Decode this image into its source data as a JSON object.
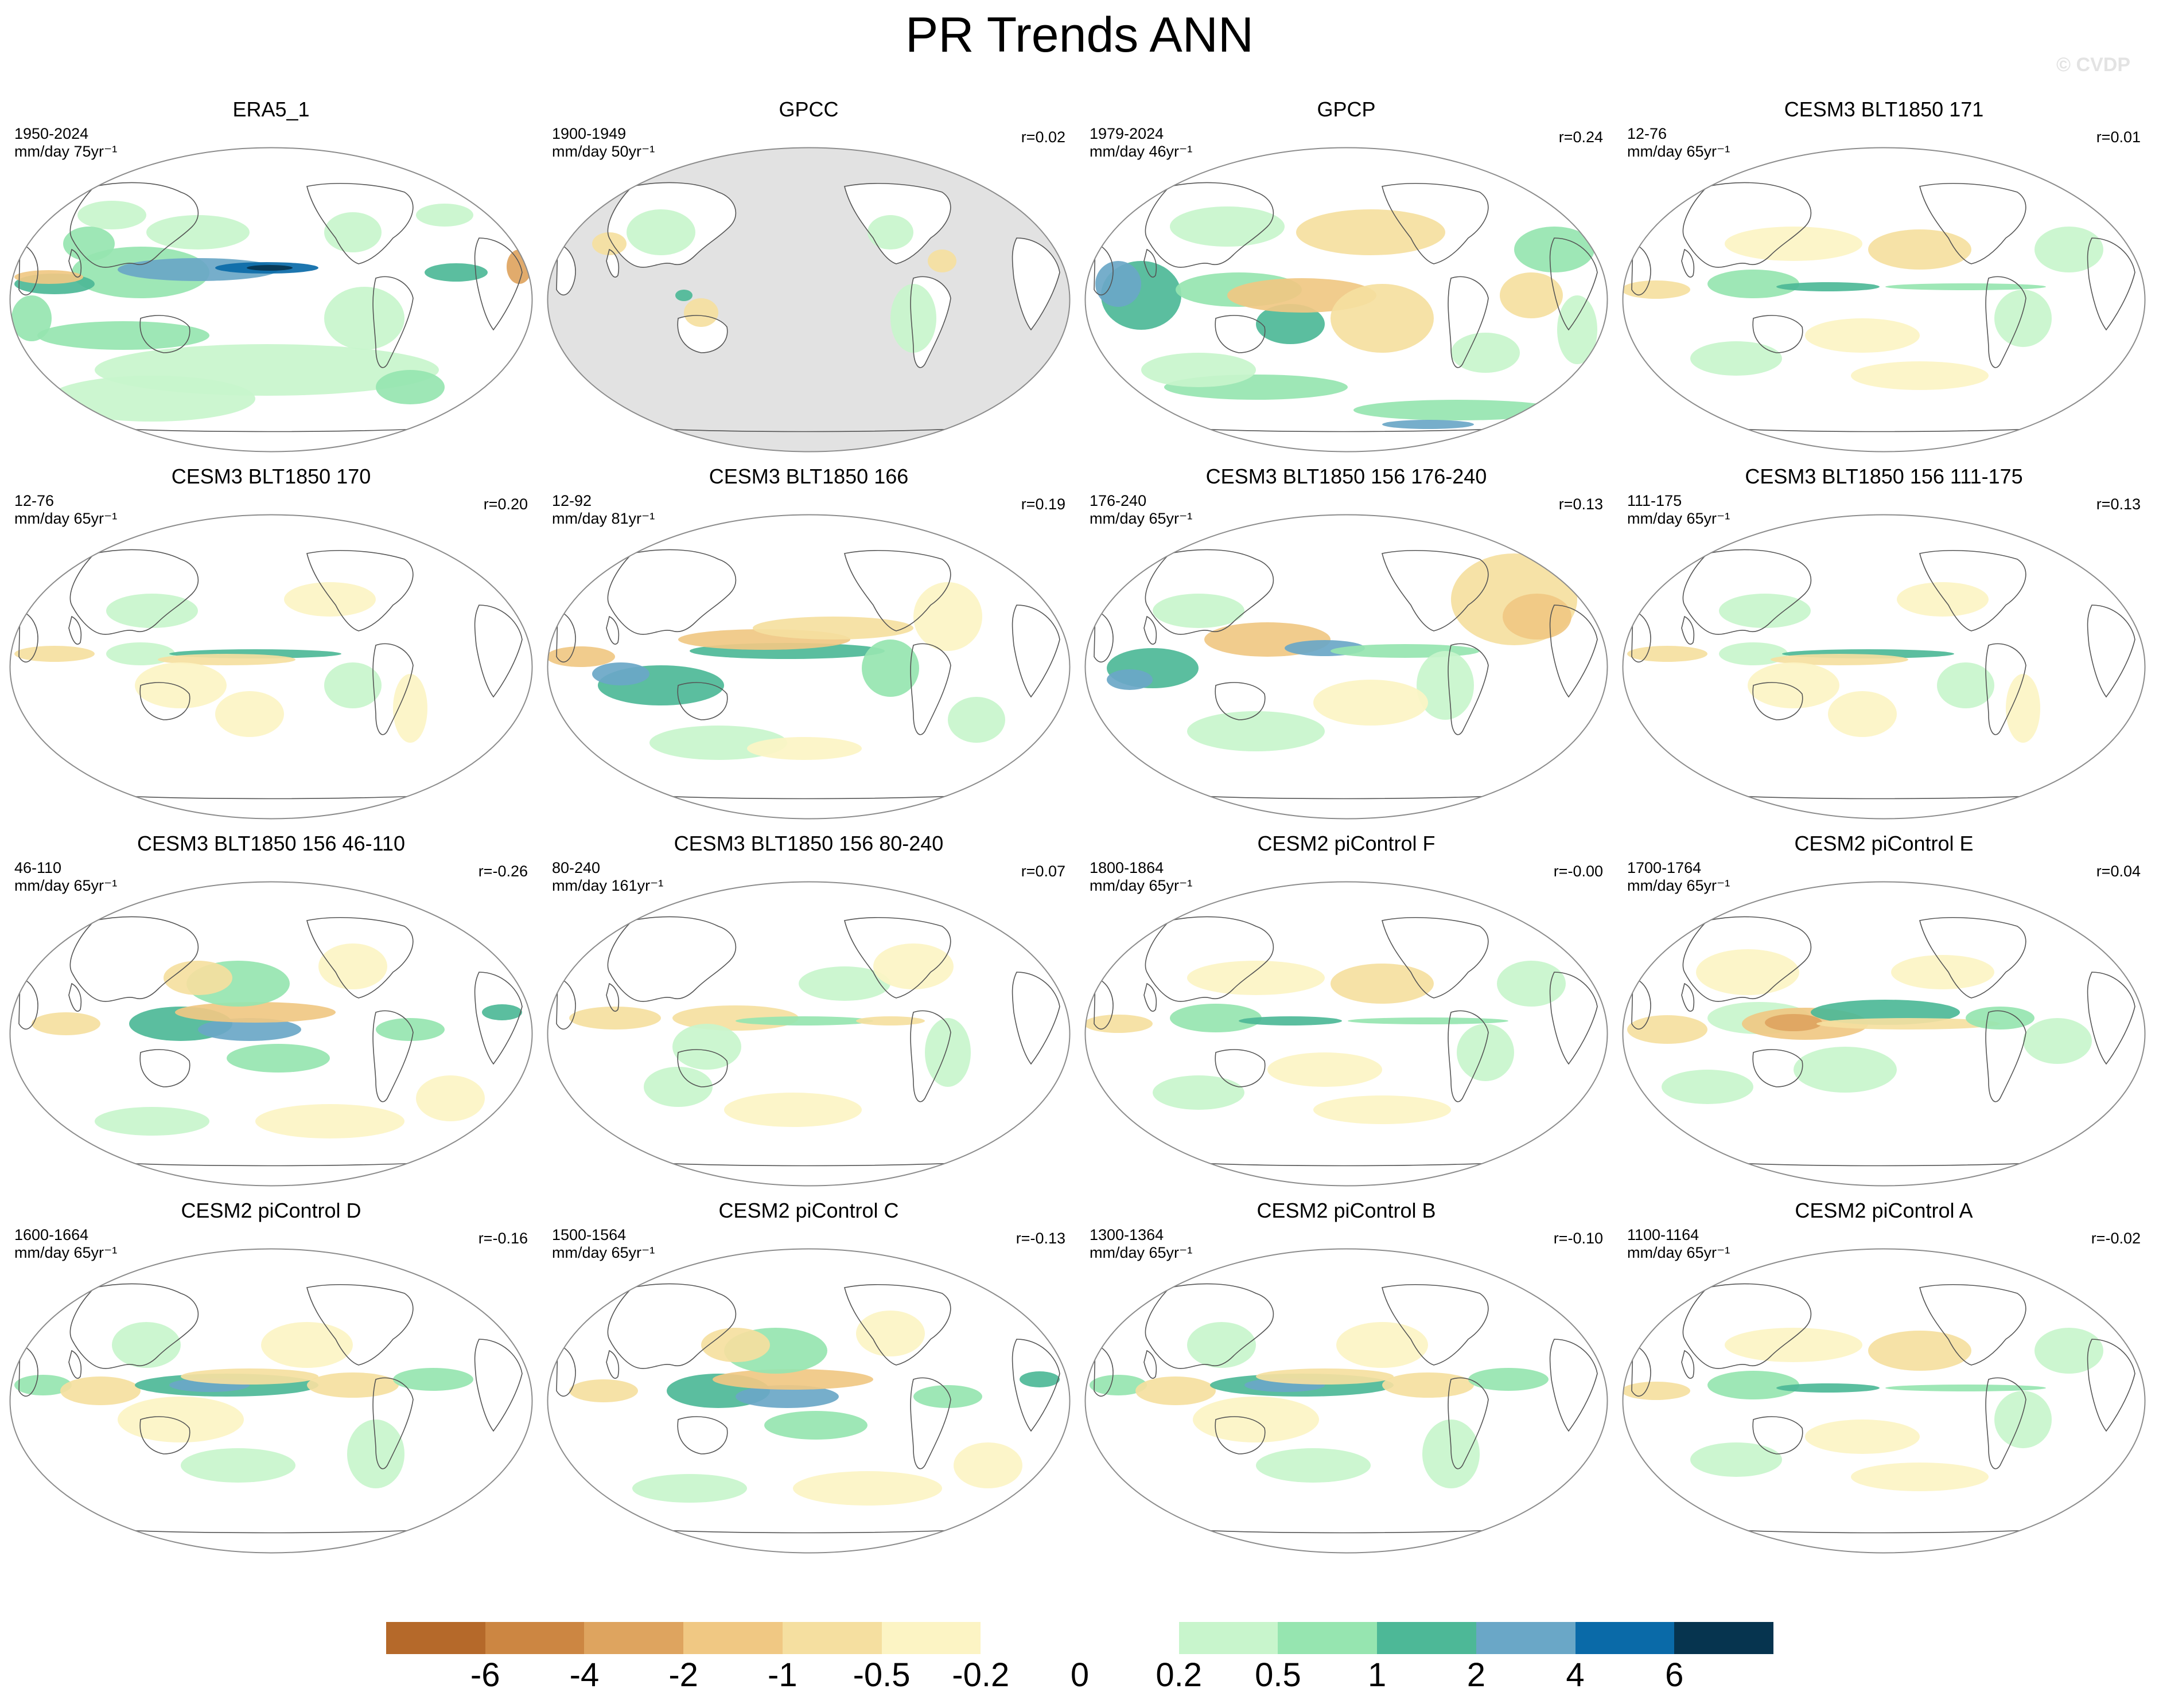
{
  "title": "PR Trends ANN",
  "watermark": "© CVDP",
  "panels": [
    {
      "title": "ERA5_1",
      "period": "1950-2024",
      "units": "mm/day 75yr⁻¹",
      "r": "",
      "masked_land_only": false,
      "pattern": "obs_era5"
    },
    {
      "title": "GPCC",
      "period": "1900-1949",
      "units": "mm/day 50yr⁻¹",
      "r": "r=0.02",
      "masked_land_only": true,
      "pattern": "gpcc"
    },
    {
      "title": "GPCP",
      "period": "1979-2024",
      "units": "mm/day 46yr⁻¹",
      "r": "r=0.24",
      "masked_land_only": false,
      "pattern": "gpcp"
    },
    {
      "title": "CESM3 BLT1850 171",
      "period": "12-76",
      "units": "mm/day 65yr⁻¹",
      "r": "r=0.01",
      "masked_land_only": false,
      "pattern": "weak_dipole"
    },
    {
      "title": "CESM3 BLT1850 170",
      "period": "12-76",
      "units": "mm/day 65yr⁻¹",
      "r": "r=0.20",
      "masked_land_only": false,
      "pattern": "narrow_band"
    },
    {
      "title": "CESM3 BLT1850 166",
      "period": "12-92",
      "units": "mm/day 81yr⁻¹",
      "r": "r=0.19",
      "masked_land_only": false,
      "pattern": "band_dry"
    },
    {
      "title": "CESM3 BLT1850 156 176-240",
      "period": "176-240",
      "units": "mm/day 65yr⁻¹",
      "r": "r=0.13",
      "masked_land_only": false,
      "pattern": "west_dry"
    },
    {
      "title": "CESM3 BLT1850 156 111-175",
      "period": "111-175",
      "units": "mm/day 65yr⁻¹",
      "r": "r=0.13",
      "masked_land_only": false,
      "pattern": "narrow_band"
    },
    {
      "title": "CESM3 BLT1850 156 46-110",
      "period": "46-110",
      "units": "mm/day 65yr⁻¹",
      "r": "r=-0.26",
      "masked_land_only": false,
      "pattern": "spcz_wet"
    },
    {
      "title": "CESM3 BLT1850 156 80-240",
      "period": "80-240",
      "units": "mm/day 161yr⁻¹",
      "r": "r=0.07",
      "masked_land_only": false,
      "pattern": "weak_band"
    },
    {
      "title": "CESM2 piControl F",
      "period": "1800-1864",
      "units": "mm/day 65yr⁻¹",
      "r": "r=-0.00",
      "masked_land_only": false,
      "pattern": "weak_dipole"
    },
    {
      "title": "CESM2 piControl E",
      "period": "1700-1764",
      "units": "mm/day 65yr⁻¹",
      "r": "r=0.04",
      "masked_land_only": false,
      "pattern": "dry_center"
    },
    {
      "title": "CESM2 piControl D",
      "period": "1600-1664",
      "units": "mm/day 65yr⁻¹",
      "r": "r=-0.16",
      "masked_land_only": false,
      "pattern": "band_wet"
    },
    {
      "title": "CESM2 piControl C",
      "period": "1500-1564",
      "units": "mm/day 65yr⁻¹",
      "r": "r=-0.13",
      "masked_land_only": false,
      "pattern": "spcz_wet"
    },
    {
      "title": "CESM2 piControl B",
      "period": "1300-1364",
      "units": "mm/day 65yr⁻¹",
      "r": "r=-0.10",
      "masked_land_only": false,
      "pattern": "band_wet"
    },
    {
      "title": "CESM2 piControl A",
      "period": "1100-1164",
      "units": "mm/day 65yr⁻¹",
      "r": "r=-0.02",
      "masked_land_only": false,
      "pattern": "weak_dipole"
    }
  ],
  "colorbar": {
    "colors": [
      "#b5692a",
      "#cc8642",
      "#dea45f",
      "#f0c883",
      "#f5dfa0",
      "#fcf4c4",
      "#ffffff",
      "#ffffff",
      "#c8f5cc",
      "#96e5b0",
      "#4db897",
      "#6aa7c7",
      "#0a6aa8",
      "#06344f"
    ],
    "labels": [
      "-6",
      "-4",
      "-2",
      "-1",
      "-0.5",
      "-0.2",
      "0",
      "0.2",
      "0.5",
      "1",
      "2",
      "4",
      "6"
    ]
  },
  "colors": {
    "land_mask": "#e2e2e2",
    "coast": "#555555",
    "outline": "#8c8c8c"
  }
}
